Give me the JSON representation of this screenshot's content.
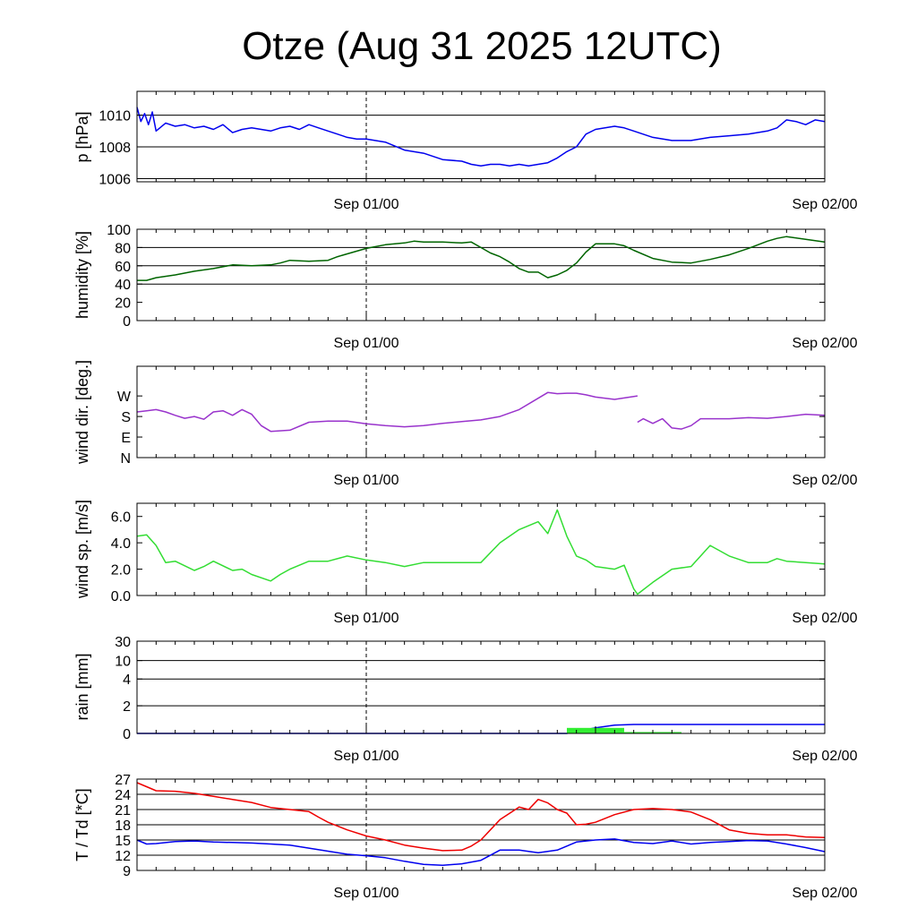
{
  "title": "Otze (Aug 31 2025 12UTC)",
  "chart_data": {
    "type": "line",
    "x_unit": "hours since Aug 31 2025 12UTC",
    "xlim": [
      0,
      36
    ],
    "x_tick_labels": [
      {
        "x": 12,
        "label": "Sep 01/00"
      },
      {
        "x": 36,
        "label": "Sep 02/00"
      }
    ],
    "x_grid_minor": 24,
    "panels": [
      {
        "id": "pressure",
        "ylabel": "p [hPa]",
        "ylim": [
          1005.8,
          1011.5
        ],
        "grid": [
          1006,
          1008,
          1010
        ],
        "ticks": [
          {
            "v": 1006,
            "label": "1006"
          },
          {
            "v": 1008,
            "label": "1008"
          },
          {
            "v": 1010,
            "label": "1010"
          }
        ],
        "series": [
          {
            "name": "pressure",
            "color": "#0000ee",
            "type": "line",
            "x": [
              0,
              0.2,
              0.4,
              0.6,
              0.8,
              1,
              1.5,
              2,
              2.5,
              3,
              3.5,
              4,
              4.5,
              5,
              5.5,
              6,
              6.5,
              7,
              7.5,
              8,
              8.5,
              9,
              9.5,
              10,
              10.5,
              11,
              11.5,
              12,
              13,
              14,
              15,
              16,
              17,
              17.5,
              18,
              18.5,
              19,
              19.5,
              20,
              20.5,
              21,
              21.5,
              22,
              22.5,
              23,
              23.5,
              24,
              25,
              25.5,
              26,
              27,
              28,
              29,
              30,
              31,
              32,
              33,
              33.5,
              34,
              34.5,
              35,
              35.5,
              36
            ],
            "y": [
              1010.5,
              1009.6,
              1010.1,
              1009.4,
              1010.2,
              1009.0,
              1009.5,
              1009.3,
              1009.4,
              1009.2,
              1009.3,
              1009.1,
              1009.4,
              1008.9,
              1009.1,
              1009.2,
              1009.1,
              1009.0,
              1009.2,
              1009.3,
              1009.1,
              1009.4,
              1009.2,
              1009.0,
              1008.8,
              1008.6,
              1008.5,
              1008.5,
              1008.3,
              1007.8,
              1007.6,
              1007.2,
              1007.1,
              1006.9,
              1006.8,
              1006.9,
              1006.9,
              1006.8,
              1006.9,
              1006.8,
              1006.9,
              1007.0,
              1007.3,
              1007.7,
              1008.0,
              1008.8,
              1009.1,
              1009.3,
              1009.2,
              1009.0,
              1008.6,
              1008.4,
              1008.4,
              1008.6,
              1008.7,
              1008.8,
              1009.0,
              1009.2,
              1009.7,
              1009.6,
              1009.4,
              1009.7,
              1009.6
            ]
          }
        ]
      },
      {
        "id": "humidity",
        "ylabel": "humidity [%]",
        "ylim": [
          0,
          100
        ],
        "grid": [
          40,
          60,
          80
        ],
        "ticks": [
          {
            "v": 0,
            "label": "0"
          },
          {
            "v": 20,
            "label": "20"
          },
          {
            "v": 40,
            "label": "40"
          },
          {
            "v": 60,
            "label": "60"
          },
          {
            "v": 80,
            "label": "80"
          },
          {
            "v": 100,
            "label": "100"
          }
        ],
        "series": [
          {
            "name": "humidity",
            "color": "#006400",
            "type": "line",
            "x": [
              0,
              0.5,
              1,
              2,
              3,
              4,
              5,
              6,
              7,
              7.5,
              8,
              9,
              10,
              10.5,
              11,
              12,
              13,
              14,
              14.5,
              15,
              16,
              17,
              17.5,
              18,
              18.5,
              19,
              19.5,
              20,
              20.5,
              21,
              21.5,
              22,
              22.5,
              23,
              23.5,
              24,
              25,
              25.5,
              26,
              27,
              28,
              29,
              30,
              31,
              32,
              33,
              33.5,
              34,
              35,
              36
            ],
            "y": [
              44,
              44,
              47,
              50,
              54,
              57,
              61,
              60,
              61,
              63,
              66,
              65,
              66,
              70,
              73,
              79,
              83,
              85,
              87,
              86,
              86,
              85,
              86,
              80,
              74,
              70,
              64,
              57,
              53,
              53,
              47,
              50,
              55,
              63,
              75,
              84,
              84,
              82,
              77,
              68,
              64,
              63,
              67,
              72,
              79,
              87,
              90,
              92,
              89,
              86
            ]
          }
        ]
      },
      {
        "id": "wind_direction",
        "ylabel": "wind dir. [deg.]",
        "ylim": [
          0,
          400
        ],
        "grid": [],
        "ticks": [
          {
            "v": 0,
            "label": "N"
          },
          {
            "v": 90,
            "label": "E"
          },
          {
            "v": 180,
            "label": "S"
          },
          {
            "v": 270,
            "label": "W"
          }
        ],
        "series": [
          {
            "name": "wind_direction_1",
            "color": "#9933cc",
            "type": "line",
            "x": [
              0,
              0.5,
              1,
              1.5,
              2,
              2.5,
              3,
              3.5,
              4,
              4.5,
              5,
              5.5,
              6,
              6.5,
              7,
              8,
              9,
              10,
              11,
              12,
              13,
              14,
              15,
              16,
              17,
              18,
              19,
              20,
              21,
              21.5,
              22,
              22.5,
              23,
              23.5,
              24,
              25,
              26.2
            ],
            "y": [
              200,
              205,
              210,
              200,
              185,
              172,
              180,
              168,
              200,
              205,
              185,
              210,
              190,
              140,
              115,
              120,
              155,
              160,
              160,
              148,
              140,
              135,
              140,
              150,
              158,
              165,
              180,
              210,
              260,
              285,
              280,
              282,
              282,
              275,
              265,
              255,
              270
            ]
          },
          {
            "name": "wind_direction_2",
            "color": "#9933cc",
            "type": "line",
            "x": [
              26.2,
              26.5,
              27,
              27.5,
              28,
              28.5,
              29,
              29.5,
              30,
              31,
              32,
              33,
              34,
              35,
              36
            ],
            "y": [
              155,
              170,
              150,
              170,
              130,
              125,
              140,
              170,
              170,
              170,
              175,
              172,
              180,
              190,
              185
            ]
          }
        ]
      },
      {
        "id": "wind_speed",
        "ylabel": "wind sp. [m/s]",
        "ylim": [
          0,
          7
        ],
        "grid": [],
        "ticks": [
          {
            "v": 0,
            "label": "0.0"
          },
          {
            "v": 2,
            "label": "2.0"
          },
          {
            "v": 4,
            "label": "4.0"
          },
          {
            "v": 6,
            "label": "6.0"
          }
        ],
        "series": [
          {
            "name": "wind_speed",
            "color": "#33dd33",
            "type": "line",
            "x": [
              0,
              0.5,
              1,
              1.5,
              2,
              3,
              3.5,
              4,
              5,
              5.5,
              6,
              7,
              7.5,
              8,
              9,
              10,
              11,
              12,
              13,
              14,
              15,
              16,
              17,
              18,
              19,
              20,
              21,
              21.5,
              22,
              22.5,
              23,
              23.5,
              24,
              25,
              25.5,
              26,
              26.2,
              27,
              28,
              29,
              30,
              31,
              32,
              33,
              33.5,
              34,
              35,
              36
            ],
            "y": [
              4.5,
              4.6,
              3.8,
              2.5,
              2.6,
              1.9,
              2.2,
              2.6,
              1.9,
              2.0,
              1.6,
              1.1,
              1.6,
              2.0,
              2.6,
              2.6,
              3.0,
              2.7,
              2.5,
              2.2,
              2.5,
              2.5,
              2.5,
              2.5,
              4.0,
              5.0,
              5.6,
              4.7,
              6.5,
              4.5,
              3.0,
              2.7,
              2.2,
              2.0,
              2.3,
              0.5,
              0.1,
              1.0,
              2.0,
              2.2,
              3.8,
              3.0,
              2.5,
              2.5,
              2.8,
              2.6,
              2.5,
              2.4
            ]
          }
        ]
      },
      {
        "id": "rain",
        "ylabel": "rain [mm]",
        "ylim": [
          0,
          30
        ],
        "grid": [
          2,
          4,
          10
        ],
        "ticks": [
          {
            "v": 0,
            "label": "0"
          },
          {
            "v": 2,
            "label": "2"
          },
          {
            "v": 4,
            "label": "4"
          },
          {
            "v": 10,
            "label": "10"
          },
          {
            "v": 30,
            "label": "30"
          }
        ],
        "series": [
          {
            "name": "rain_accumulated",
            "color": "#0000ee",
            "type": "line",
            "x": [
              0,
              22.5,
              23,
              24,
              25,
              26,
              27,
              36
            ],
            "y": [
              0,
              0,
              0.15,
              0.4,
              0.6,
              0.65,
              0.65,
              0.65
            ]
          },
          {
            "name": "rain_bar_1",
            "color": "#33ee33",
            "type": "bar",
            "x": [
              22.5,
              25.5
            ],
            "y": [
              0.4
            ]
          },
          {
            "name": "rain_bar_2",
            "color": "#33ee33",
            "type": "bar",
            "x": [
              25.5,
              28.5
            ],
            "y": [
              0.1
            ]
          }
        ]
      },
      {
        "id": "temperature",
        "ylabel": "T / Td [*C]",
        "ylim": [
          9,
          27
        ],
        "grid": [
          12,
          15,
          18,
          21,
          24
        ],
        "ticks": [
          {
            "v": 9,
            "label": "9"
          },
          {
            "v": 12,
            "label": "12"
          },
          {
            "v": 15,
            "label": "15"
          },
          {
            "v": 18,
            "label": "18"
          },
          {
            "v": 21,
            "label": "21"
          },
          {
            "v": 24,
            "label": "24"
          },
          {
            "v": 27,
            "label": "27"
          }
        ],
        "series": [
          {
            "name": "T",
            "color": "#ee0000",
            "type": "line",
            "x": [
              0,
              0.5,
              1,
              2,
              3,
              4,
              5,
              6,
              7,
              8,
              9,
              9.5,
              10,
              11,
              12,
              13,
              14,
              15,
              16,
              17,
              17.5,
              18,
              19,
              20,
              20.5,
              21,
              21.5,
              22,
              22.5,
              23,
              23.5,
              24,
              25,
              26,
              27,
              28,
              29,
              30,
              31,
              32,
              33,
              34,
              35,
              36
            ],
            "y": [
              26.3,
              25.5,
              24.7,
              24.6,
              24.2,
              23.6,
              23.0,
              22.4,
              21.4,
              21.0,
              20.6,
              19.5,
              18.5,
              17.0,
              15.8,
              15.0,
              14.0,
              13.4,
              12.9,
              13.0,
              13.8,
              15.0,
              19.0,
              21.5,
              21.0,
              23.0,
              22.3,
              21.0,
              20.3,
              18.0,
              18.1,
              18.5,
              20.0,
              21.0,
              21.2,
              21.0,
              20.5,
              19.0,
              17.0,
              16.3,
              16.0,
              16.0,
              15.6,
              15.5
            ]
          },
          {
            "name": "Td",
            "color": "#0000ee",
            "type": "line",
            "x": [
              0,
              0.5,
              1,
              2,
              3,
              4,
              5,
              6,
              7,
              8,
              9,
              10,
              11,
              12,
              13,
              14,
              15,
              16,
              17,
              18,
              19,
              20,
              21,
              22,
              23,
              24,
              25,
              26,
              27,
              28,
              29,
              30,
              31,
              32,
              33,
              34,
              35,
              36
            ],
            "y": [
              15.0,
              14.2,
              14.3,
              14.7,
              14.8,
              14.6,
              14.5,
              14.4,
              14.2,
              14.0,
              13.4,
              12.8,
              12.2,
              11.9,
              11.5,
              10.8,
              10.2,
              10.0,
              10.3,
              11.0,
              13.0,
              13.0,
              12.5,
              13.0,
              14.6,
              15.0,
              15.2,
              14.5,
              14.3,
              14.8,
              14.2,
              14.5,
              14.7,
              14.9,
              14.8,
              14.2,
              13.5,
              12.7
            ]
          }
        ]
      }
    ]
  }
}
